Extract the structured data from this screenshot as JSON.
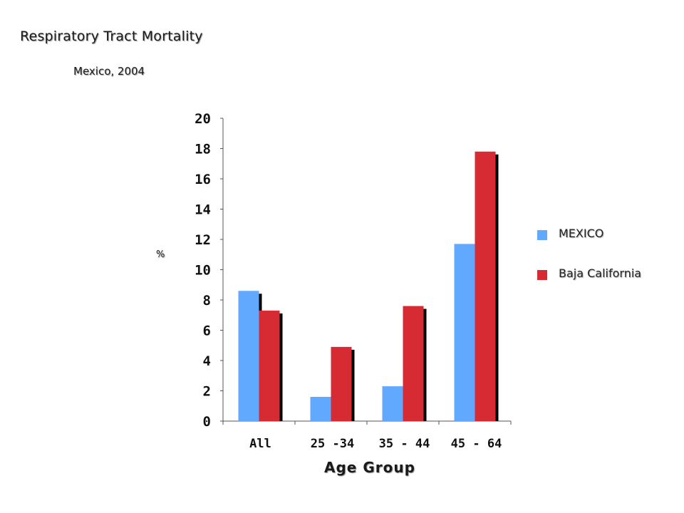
{
  "chart_data": {
    "type": "bar",
    "title": "Respiratory Tract Mortality",
    "subtitle": "Mexico, 2004",
    "xlabel": "Age Group",
    "ylabel": "%",
    "ylim": [
      0,
      20
    ],
    "yticks": [
      0,
      2,
      4,
      6,
      8,
      10,
      12,
      14,
      16,
      18,
      20
    ],
    "categories": [
      "All",
      "25 -34",
      "35 - 44",
      "45 - 64"
    ],
    "series": [
      {
        "name": "MEXICO",
        "color": "#61a8ff",
        "values": [
          8.6,
          1.6,
          2.3,
          11.7
        ]
      },
      {
        "name": "Baja California",
        "color": "#d62b33",
        "values": [
          7.3,
          4.9,
          7.6,
          17.8
        ]
      }
    ],
    "grid": false,
    "legend_position": "right"
  }
}
